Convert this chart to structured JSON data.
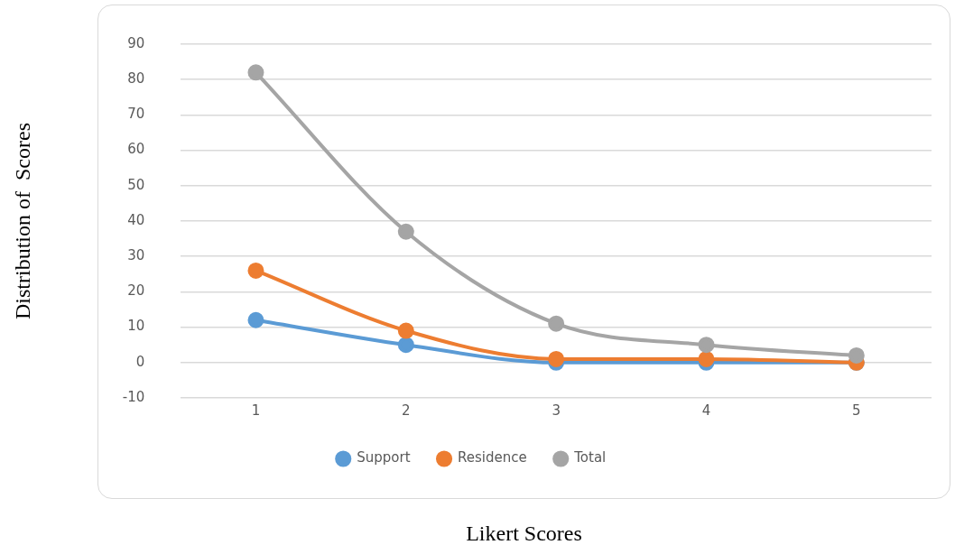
{
  "chart_data": {
    "type": "line",
    "xlabel": "Likert Scores",
    "ylabel": "Distribution of  Scores",
    "categories": [
      "1",
      "2",
      "3",
      "4",
      "5"
    ],
    "series": [
      {
        "name": "Support",
        "color": "#5b9bd5",
        "values": [
          12,
          5,
          0,
          0,
          0
        ]
      },
      {
        "name": "Residence",
        "color": "#ed7d31",
        "values": [
          26,
          9,
          1,
          1,
          0
        ]
      },
      {
        "name": "Total",
        "color": "#a5a5a5",
        "values": [
          82,
          37,
          11,
          5,
          2
        ]
      }
    ],
    "ylim": [
      -10,
      90
    ],
    "yticks": [
      -10,
      0,
      10,
      20,
      30,
      40,
      50,
      60,
      70,
      80,
      90
    ],
    "grid": "y",
    "legend": "bottom",
    "marker": "circle",
    "line_style": "solid"
  }
}
